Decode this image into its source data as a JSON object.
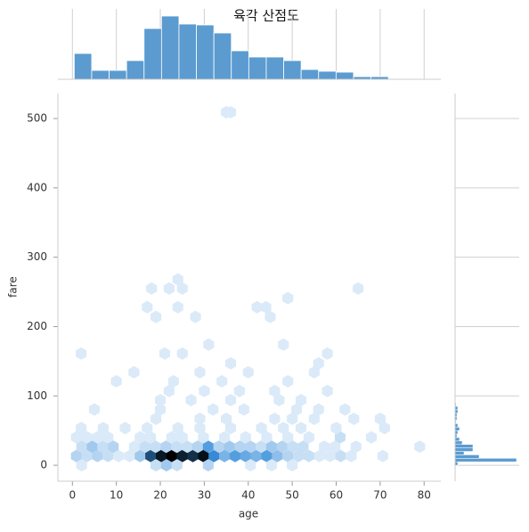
{
  "chart_data": [
    {
      "type": "hexbin",
      "title": "육각 산점도",
      "x_label": "age",
      "y_label": "fare",
      "xlim": [
        -3.3,
        83.8
      ],
      "ylim": [
        -23,
        536
      ],
      "xticks": [
        0,
        10,
        20,
        30,
        40,
        50,
        60,
        70,
        80
      ],
      "yticks": [
        0,
        100,
        200,
        300,
        400,
        500
      ],
      "x": [
        0.9,
        3.3,
        5.7,
        8.1,
        10.5,
        13,
        15.4,
        17.8,
        20.2,
        22.6,
        25,
        27.4,
        29.8,
        32.2,
        34.6,
        37,
        39.4,
        41.8,
        44.2,
        46.6,
        49,
        51.4,
        53.8,
        56.2,
        58.6,
        61,
        63.4,
        70.6,
        2.1,
        19,
        21.4,
        23.8,
        30.9,
        40.5,
        45.3,
        50,
        2.1,
        4.5,
        6.9,
        9.3,
        14.1,
        16.5,
        18.9,
        21.3,
        23.7,
        26.1,
        28.5,
        30.9,
        33.3,
        35.7,
        38.1,
        40.5,
        42.9,
        45.3,
        47.7,
        50.1,
        52.5,
        57.3,
        59.7,
        64.5,
        79,
        0.9,
        3.3,
        5.7,
        8.1,
        15.4,
        17.8,
        22.6,
        25,
        29.8,
        34.6,
        39.4,
        44.2,
        49,
        53.8,
        60.9,
        68,
        2,
        7,
        12,
        17,
        24,
        29,
        36,
        43,
        48,
        52,
        60,
        71,
        19,
        29,
        35,
        46,
        50,
        55,
        64,
        70,
        5,
        20,
        32,
        39,
        51,
        56,
        62,
        20,
        27,
        36,
        47,
        52,
        22,
        30,
        38,
        46,
        58,
        10,
        23,
        34,
        49,
        14,
        29,
        40,
        55,
        36,
        56,
        2,
        21,
        25,
        58,
        31,
        48,
        19,
        28,
        45,
        17,
        24,
        42,
        44,
        49,
        18,
        22,
        25,
        65,
        24,
        35,
        36
      ],
      "y": [
        13.4,
        13.4,
        13.4,
        13.4,
        13.4,
        13.4,
        13.4,
        13.4,
        13.4,
        13.4,
        13.4,
        13.4,
        13.4,
        13.4,
        13.4,
        13.4,
        13.4,
        13.4,
        13.4,
        13.4,
        13.4,
        13.4,
        13.4,
        13.4,
        13.4,
        13.4,
        13.4,
        13.4,
        0,
        0,
        0,
        0,
        0,
        0,
        0,
        0,
        26.8,
        26.8,
        26.8,
        26.8,
        26.8,
        26.8,
        26.8,
        26.8,
        26.8,
        26.8,
        26.8,
        26.8,
        26.8,
        26.8,
        26.8,
        26.8,
        26.8,
        26.8,
        26.8,
        26.8,
        26.8,
        26.8,
        26.8,
        26.8,
        26.8,
        40.2,
        40.2,
        40.2,
        40.2,
        40.2,
        40.2,
        40.2,
        40.2,
        40.2,
        40.2,
        40.2,
        40.2,
        40.2,
        40.2,
        40.2,
        40.2,
        53.6,
        53.6,
        53.6,
        53.6,
        53.6,
        53.6,
        53.6,
        53.6,
        53.6,
        53.6,
        53.6,
        53.6,
        67,
        67,
        67,
        67,
        67,
        67,
        67,
        67,
        80.4,
        80.4,
        80.4,
        80.4,
        80.4,
        80.4,
        80.4,
        94,
        94,
        94,
        94,
        94,
        107,
        107,
        107,
        107,
        107,
        121,
        121,
        121,
        121,
        134,
        134,
        134,
        134,
        147,
        147,
        161,
        161,
        161,
        161,
        174,
        174,
        214,
        214,
        214,
        228,
        228,
        228,
        228,
        241,
        255,
        255,
        255,
        255,
        268,
        509,
        509
      ],
      "values": [
        3,
        2,
        3,
        2,
        1,
        1,
        4,
        18,
        25,
        28,
        24,
        22,
        26,
        10,
        6,
        8,
        7,
        6,
        8,
        5,
        3,
        2,
        2,
        1,
        1,
        2,
        1,
        1,
        1,
        2,
        4,
        2,
        3,
        1,
        1,
        1,
        2,
        4,
        2,
        3,
        1,
        2,
        2,
        3,
        2,
        2,
        3,
        8,
        3,
        4,
        3,
        3,
        2,
        4,
        3,
        2,
        2,
        1,
        1,
        1,
        1,
        1,
        1,
        1,
        1,
        1,
        1,
        1,
        1,
        1,
        1,
        1,
        1,
        1,
        1,
        2,
        1,
        1,
        1,
        1,
        1,
        1,
        1,
        1,
        1,
        1,
        1,
        1,
        1,
        1,
        1,
        1,
        1,
        1,
        1,
        1,
        1,
        1,
        1,
        1,
        1,
        1,
        1,
        1,
        1,
        1,
        1,
        1,
        1,
        1,
        1,
        1,
        1,
        1,
        1,
        1,
        1,
        1,
        1,
        1,
        1,
        1,
        1,
        1,
        1,
        1,
        1,
        1,
        1,
        1,
        1,
        1,
        1,
        1,
        1,
        1,
        1,
        1,
        1,
        1,
        1,
        1,
        1,
        1,
        1
      ],
      "colors": [
        "#eef5fc",
        "#3a8fd9",
        "#1d4a72",
        "#000000"
      ]
    },
    {
      "type": "histogram",
      "orientation": "vertical",
      "color": "#5b9bd0",
      "bins": [
        0.42,
        4.39,
        8.36,
        12.33,
        16.3,
        20.27,
        24.24,
        28.21,
        32.18,
        36.15,
        40.12,
        44.09,
        48.06,
        52.03,
        56.0,
        59.97,
        63.94,
        67.91,
        71.88
      ],
      "values": [
        29,
        10,
        10,
        21,
        57,
        71,
        62,
        61,
        52,
        32,
        25,
        25,
        21,
        11,
        9,
        8,
        3,
        3
      ],
      "ylim": [
        0,
        79
      ]
    },
    {
      "type": "histogram",
      "orientation": "horizontal",
      "color": "#5b9bd0",
      "bins": [
        0,
        5,
        10,
        15,
        20,
        25,
        30,
        35,
        40,
        45,
        50,
        55,
        60,
        65,
        70,
        75,
        80,
        85,
        90,
        95,
        100
      ],
      "values": [
        3,
        69,
        27,
        10,
        20,
        20,
        8,
        5,
        2,
        3,
        5,
        3,
        1,
        2,
        2,
        3,
        3,
        1,
        0,
        0
      ],
      "xlim": [
        0,
        72
      ]
    }
  ]
}
